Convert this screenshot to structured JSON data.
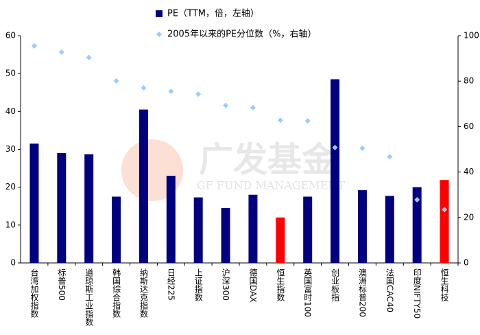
{
  "chart_data": {
    "type": "bar",
    "watermark": {
      "title": "广发基金",
      "subtitle": "GF FUND MANAGEMENT"
    },
    "categories": [
      "台湾加权指数",
      "标普500",
      "道琼斯工业指数",
      "韩国综合指数",
      "纳斯达克指数",
      "日经225",
      "上证指数",
      "沪深300",
      "德国DAX",
      "恒生指数",
      "英国富时100",
      "创业板指",
      "澳洲标普200",
      "法国CAC40",
      "印度NIFTY50",
      "恒生科技"
    ],
    "series": [
      {
        "name": "PE（TTM，倍，左轴）",
        "type": "bar",
        "color": "#000080",
        "colors": [
          "#000080",
          "#000080",
          "#000080",
          "#000080",
          "#000080",
          "#000080",
          "#000080",
          "#000080",
          "#000080",
          "#ff0000",
          "#000080",
          "#000080",
          "#000080",
          "#000080",
          "#000080",
          "#ff0000"
        ],
        "values": [
          31.5,
          29,
          28.7,
          17.5,
          40.5,
          23,
          17.3,
          14.5,
          18,
          12,
          17.5,
          48.5,
          19.2,
          17.7,
          20,
          21.9
        ]
      },
      {
        "name": "2005年以来的PE分位数（%，右轴）",
        "type": "scatter",
        "axis": "y2",
        "color": "#99ccff",
        "values": [
          95.5,
          92.8,
          90.4,
          80.1,
          77,
          75.5,
          74.3,
          69.3,
          68.3,
          62.8,
          62.5,
          50.8,
          50.5,
          46.7,
          27.8,
          23.5
        ]
      }
    ],
    "ylim": [
      0,
      60
    ],
    "yticks": [
      0,
      10,
      20,
      30,
      40,
      50,
      60
    ],
    "y2lim": [
      0,
      100
    ],
    "y2ticks": [
      0,
      20,
      40,
      60,
      80,
      100
    ],
    "grid": false
  }
}
